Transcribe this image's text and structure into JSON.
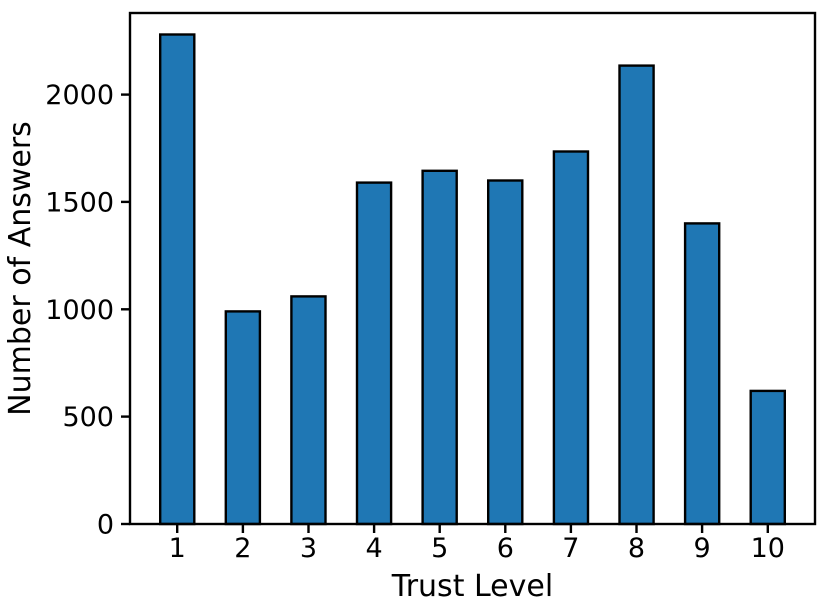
{
  "chart_data": {
    "type": "bar",
    "xlabel": "Trust Level",
    "ylabel": "Number of Answers",
    "categories": [
      "1",
      "2",
      "3",
      "4",
      "5",
      "6",
      "7",
      "8",
      "9",
      "10"
    ],
    "x": [
      1,
      2,
      3,
      4,
      5,
      6,
      7,
      8,
      9,
      10
    ],
    "values": [
      2280,
      990,
      1060,
      1590,
      1645,
      1600,
      1735,
      2135,
      1400,
      620
    ],
    "yticks": [
      0,
      500,
      1000,
      1500,
      2000
    ],
    "xlim": [
      0.28,
      10.72
    ],
    "ylim": [
      0,
      2380
    ],
    "bar_width_units": 0.52,
    "grid": false,
    "legend": false,
    "colors": {
      "bar_fill": "#1f77b4",
      "bar_edge": "#000000",
      "axis": "#000000",
      "text": "#000000",
      "background": "#ffffff"
    }
  }
}
